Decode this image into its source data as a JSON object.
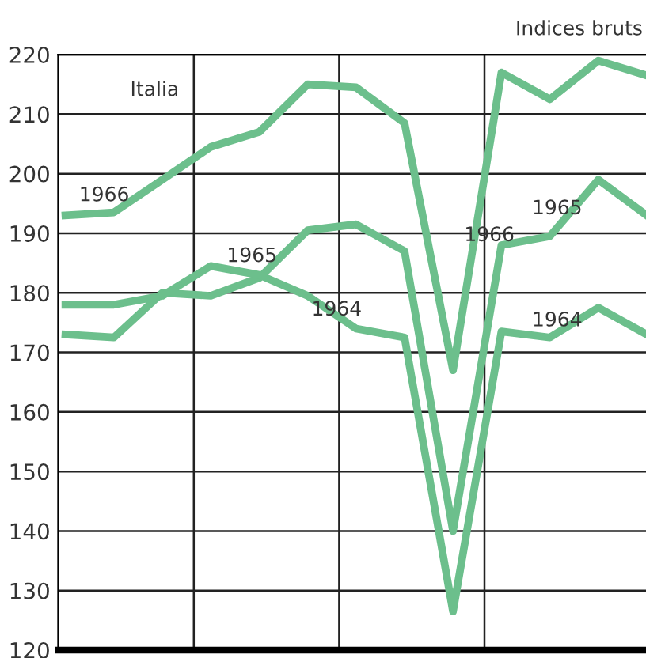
{
  "chart_data": {
    "type": "line",
    "title": "Italia",
    "subtitle": "Indices bruts",
    "categories": [
      null,
      null,
      null,
      null,
      null,
      null,
      null,
      null,
      null,
      null,
      null,
      null,
      null
    ],
    "series": [
      {
        "name": "1966",
        "color": "#6cbf8c",
        "values": [
          193,
          193.5,
          199,
          204.5,
          207,
          215,
          214.5,
          208.5,
          167,
          217,
          212.5,
          219,
          216.5
        ]
      },
      {
        "name": "1965",
        "color": "#6cbf8c",
        "values": [
          173,
          172.5,
          180,
          179.5,
          182.5,
          190.5,
          191.5,
          187,
          140,
          188,
          189.5,
          199,
          193
        ]
      },
      {
        "name": "1964",
        "color": "#6cbf8c",
        "values": [
          178,
          178,
          179.5,
          184.5,
          183,
          179.5,
          174,
          172.5,
          126.5,
          173.5,
          172.5,
          177.5,
          173
        ]
      }
    ],
    "ylim": [
      120,
      220
    ],
    "yticks": [
      120,
      130,
      140,
      150,
      160,
      170,
      180,
      190,
      200,
      210,
      220
    ],
    "grid": true,
    "legend": false
  }
}
